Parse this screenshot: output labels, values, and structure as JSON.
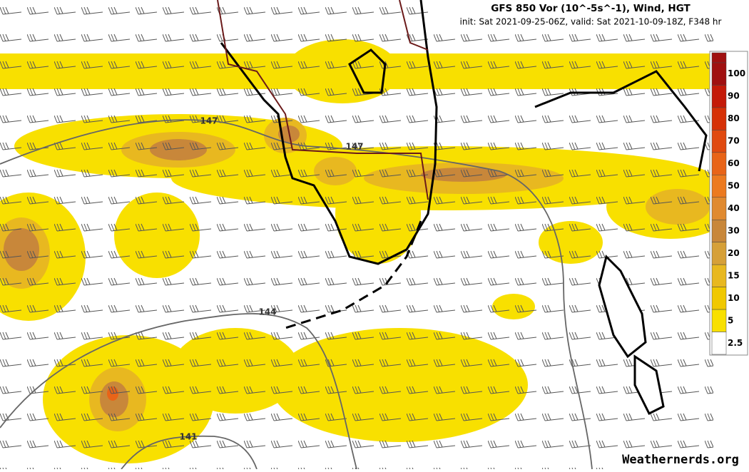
{
  "header": {
    "title": "GFS 850 Vor (10^-5s^-1), Wind, HGT",
    "subtitle": "init: Sat 2021-09-25-06Z, valid: Sat 2021-10-09-18Z, F348 hr"
  },
  "contour_labels": [
    "147",
    "147",
    "144",
    "141"
  ],
  "colorbar": {
    "levels": [
      {
        "label": 100,
        "color": "#a01010"
      },
      {
        "label": 90,
        "color": "#c41a08"
      },
      {
        "label": 80,
        "color": "#d63006"
      },
      {
        "label": 70,
        "color": "#e04a10"
      },
      {
        "label": 60,
        "color": "#e86418"
      },
      {
        "label": 50,
        "color": "#ec7a20"
      },
      {
        "label": 40,
        "color": "#e08a30"
      },
      {
        "label": 30,
        "color": "#c8873a"
      },
      {
        "label": 20,
        "color": "#d6a038"
      },
      {
        "label": 15,
        "color": "#e8b820"
      },
      {
        "label": 10,
        "color": "#f0c800"
      },
      {
        "label": 5,
        "color": "#f8e000"
      },
      {
        "label": 2.5,
        "color": "#ffffff"
      }
    ]
  },
  "watermark": "Weathernerds.org"
}
